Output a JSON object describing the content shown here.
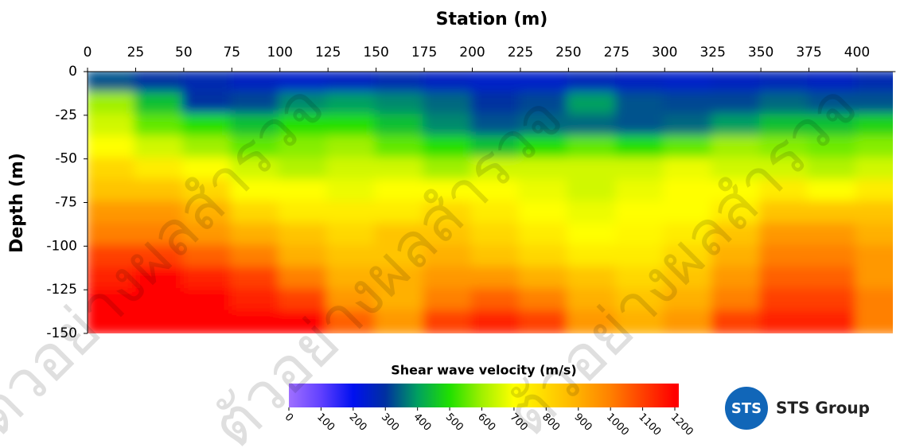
{
  "chart_data": {
    "type": "heatmap",
    "xlabel": "Station (m)",
    "ylabel": "Depth (m)",
    "x": [
      12.5,
      37.5,
      62.5,
      87.5,
      112.5,
      137.5,
      162.5,
      187.5,
      212.5,
      237.5,
      262.5,
      287.5,
      312.5,
      337.5,
      362.5,
      387.5,
      412.5
    ],
    "y": [
      -6.25,
      -18.75,
      -31.25,
      -43.75,
      -56.25,
      -68.75,
      -81.25,
      -93.75,
      -106.25,
      -118.75,
      -131.25,
      -143.75
    ],
    "values": [
      [
        330,
        300,
        280,
        260,
        250,
        260,
        280,
        260,
        250,
        250,
        270,
        260,
        250,
        260,
        270,
        260,
        280
      ],
      [
        600,
        450,
        300,
        320,
        380,
        400,
        380,
        350,
        300,
        320,
        400,
        330,
        320,
        320,
        350,
        330,
        330
      ],
      [
        650,
        550,
        500,
        450,
        500,
        500,
        450,
        380,
        330,
        350,
        350,
        330,
        350,
        400,
        450,
        450,
        480
      ],
      [
        700,
        650,
        600,
        550,
        580,
        600,
        550,
        500,
        450,
        500,
        550,
        500,
        550,
        600,
        580,
        560,
        580
      ],
      [
        800,
        750,
        700,
        650,
        620,
        650,
        650,
        600,
        650,
        650,
        650,
        650,
        680,
        650,
        650,
        620,
        650
      ],
      [
        850,
        850,
        800,
        700,
        700,
        680,
        700,
        700,
        700,
        680,
        650,
        680,
        700,
        700,
        750,
        700,
        750
      ],
      [
        950,
        950,
        900,
        800,
        750,
        750,
        750,
        800,
        750,
        700,
        680,
        700,
        700,
        750,
        850,
        850,
        850
      ],
      [
        1000,
        1000,
        950,
        900,
        850,
        800,
        850,
        850,
        800,
        750,
        700,
        720,
        750,
        850,
        950,
        950,
        900
      ],
      [
        1100,
        1100,
        1050,
        1000,
        900,
        850,
        850,
        900,
        850,
        800,
        750,
        750,
        800,
        900,
        1000,
        1000,
        950
      ],
      [
        1150,
        1200,
        1150,
        1100,
        1000,
        900,
        900,
        950,
        950,
        900,
        850,
        800,
        850,
        950,
        1050,
        1050,
        950
      ],
      [
        1200,
        1200,
        1200,
        1150,
        1100,
        950,
        900,
        1000,
        1050,
        1000,
        900,
        850,
        900,
        1000,
        1100,
        1100,
        1000
      ],
      [
        1200,
        1200,
        1200,
        1200,
        1200,
        1050,
        950,
        1100,
        1150,
        1100,
        950,
        900,
        950,
        1100,
        1150,
        1150,
        1000
      ]
    ],
    "xlim": [
      0,
      420
    ],
    "ylim": [
      -150,
      0
    ],
    "xticks": [
      0,
      25,
      50,
      75,
      100,
      125,
      150,
      175,
      200,
      225,
      250,
      275,
      300,
      325,
      350,
      375,
      400
    ],
    "yticks": [
      0,
      -25,
      -50,
      -75,
      -100,
      -125,
      -150
    ],
    "colorbar_title": "Shear wave velocity (m/s)",
    "clim": [
      0,
      1200
    ],
    "cticks": [
      0,
      100,
      200,
      300,
      400,
      500,
      600,
      700,
      800,
      900,
      1000,
      1100,
      1200
    ],
    "colorscale": [
      "#a070ff",
      "#6040ff",
      "#0010f0",
      "#0030a0",
      "#00a060",
      "#20e000",
      "#a0f000",
      "#ffff00",
      "#ffd800",
      "#ffb000",
      "#ff8000",
      "#ff4000",
      "#ff0000"
    ]
  },
  "watermark": "ตัวอย่างผลสำรวจ",
  "logo": {
    "badge": "STS",
    "name": "STS Group"
  }
}
